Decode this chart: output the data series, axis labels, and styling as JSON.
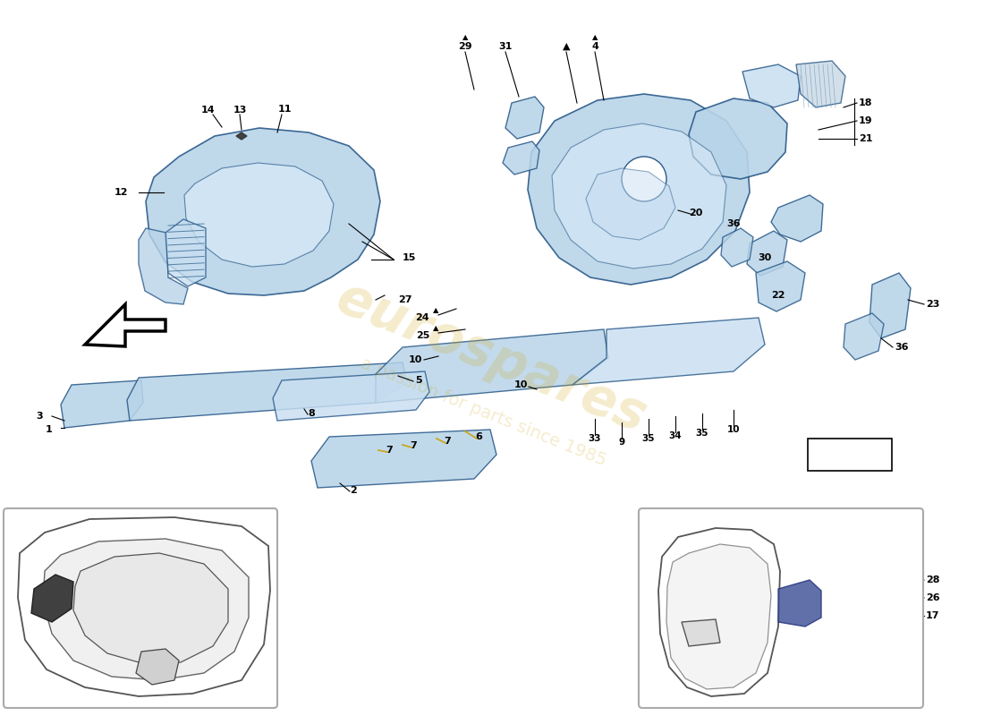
{
  "bg": "#ffffff",
  "pc": "#b8d4e8",
  "pc2": "#c8dff2",
  "pc3": "#d8eaf8",
  "oc": "#4a7aaa",
  "oc2": "#2a5a8a",
  "tc": "#000000",
  "wm1": "#d4a820",
  "wm2": "#888888"
}
